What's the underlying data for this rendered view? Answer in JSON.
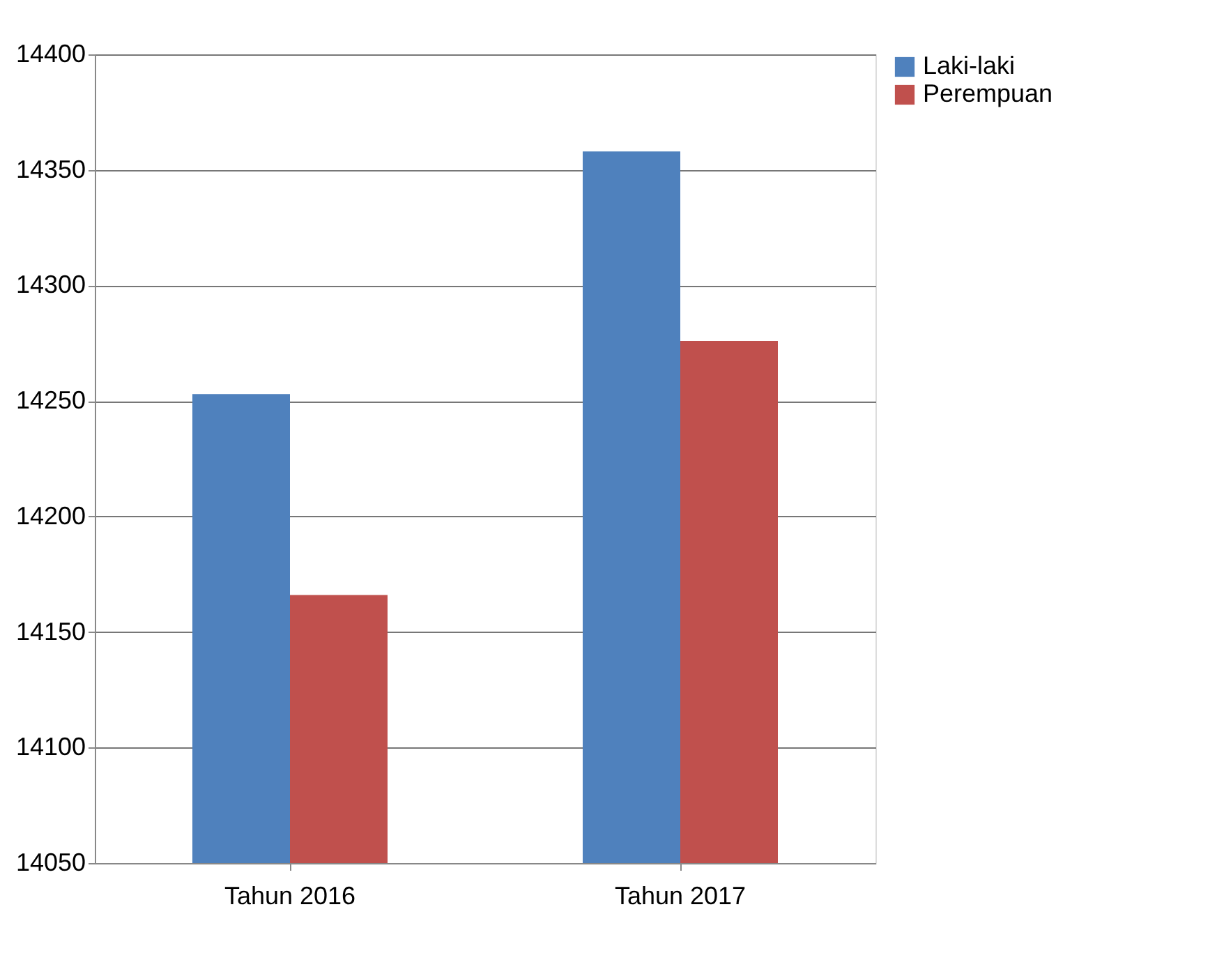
{
  "chart_data": {
    "type": "bar",
    "categories": [
      "Tahun 2016",
      "Tahun 2017"
    ],
    "series": [
      {
        "name": "Laki-laki",
        "color": "#4f81bd",
        "values": [
          14253,
          14358
        ]
      },
      {
        "name": "Perempuan",
        "color": "#c0504d",
        "values": [
          14166,
          14276
        ]
      }
    ],
    "ylim": [
      14050,
      14400
    ],
    "yticks": [
      14050,
      14100,
      14150,
      14200,
      14250,
      14300,
      14350,
      14400
    ],
    "grid": "y",
    "legend": "right"
  }
}
